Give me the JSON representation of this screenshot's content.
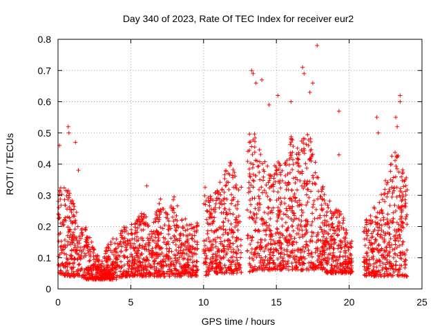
{
  "chart_data": {
    "type": "scatter",
    "title": "Day 340 of 2023, Rate Of TEC Index for receiver eur2",
    "xlabel": "GPS time / hours",
    "ylabel": "ROTI / TECUs",
    "xlim": [
      0,
      25
    ],
    "ylim": [
      0,
      0.8
    ],
    "xticks": [
      0,
      5,
      10,
      15,
      20,
      25
    ],
    "xtick_labels": [
      "0",
      "5",
      "10",
      "15",
      "20",
      "25"
    ],
    "yticks": [
      0,
      0.1,
      0.2,
      0.3,
      0.4,
      0.5,
      0.6,
      0.7,
      0.8
    ],
    "ytick_labels": [
      "0",
      "0.1",
      "0.2",
      "0.3",
      "0.4",
      "0.5",
      "0.6",
      "0.7",
      "0.8"
    ],
    "grid": true,
    "marker": "+",
    "marker_color": "#ff0000",
    "data_gaps_hours": [
      [
        9.6,
        10.0
      ],
      [
        12.6,
        13.0
      ],
      [
        20.2,
        21.0
      ]
    ],
    "envelope_hours": [
      0,
      0.5,
      1,
      1.5,
      2,
      2.5,
      3,
      3.5,
      4,
      4.5,
      5,
      5.5,
      6,
      6.5,
      7,
      7.5,
      8,
      8.5,
      9,
      9.5,
      10,
      10.5,
      11,
      11.5,
      12,
      12.5,
      13,
      13.5,
      14,
      14.5,
      15,
      15.5,
      16,
      16.5,
      17,
      17.5,
      18,
      18.5,
      19,
      19.5,
      20,
      21,
      21.5,
      22,
      22.5,
      23,
      23.5,
      24
    ],
    "upper_envelope": [
      0.35,
      0.33,
      0.3,
      0.2,
      0.2,
      0.13,
      0.1,
      0.15,
      0.17,
      0.2,
      0.22,
      0.24,
      0.25,
      0.2,
      0.3,
      0.24,
      0.3,
      0.24,
      0.22,
      0.2,
      0.35,
      0.3,
      0.35,
      0.38,
      0.42,
      0.3,
      0.5,
      0.5,
      0.45,
      0.38,
      0.42,
      0.4,
      0.5,
      0.45,
      0.55,
      0.45,
      0.35,
      0.3,
      0.26,
      0.25,
      0.15,
      0.2,
      0.26,
      0.3,
      0.35,
      0.45,
      0.42,
      0.35
    ],
    "baseline": [
      0.05,
      0.04,
      0.04,
      0.04,
      0.03,
      0.03,
      0.03,
      0.03,
      0.03,
      0.04,
      0.04,
      0.04,
      0.04,
      0.04,
      0.04,
      0.04,
      0.04,
      0.04,
      0.04,
      0.04,
      0.04,
      0.05,
      0.05,
      0.05,
      0.05,
      0.05,
      0.05,
      0.06,
      0.06,
      0.06,
      0.06,
      0.06,
      0.06,
      0.06,
      0.06,
      0.06,
      0.06,
      0.05,
      0.05,
      0.05,
      0.05,
      0.04,
      0.04,
      0.04,
      0.04,
      0.04,
      0.04,
      0.04
    ],
    "outliers": [
      {
        "x": 0.1,
        "y": 0.46
      },
      {
        "x": 0.7,
        "y": 0.52
      },
      {
        "x": 0.75,
        "y": 0.5
      },
      {
        "x": 1.2,
        "y": 0.47
      },
      {
        "x": 1.4,
        "y": 0.38
      },
      {
        "x": 6.1,
        "y": 0.33
      },
      {
        "x": 13.3,
        "y": 0.7
      },
      {
        "x": 13.4,
        "y": 0.69
      },
      {
        "x": 13.6,
        "y": 0.66
      },
      {
        "x": 14.0,
        "y": 0.67
      },
      {
        "x": 14.5,
        "y": 0.59
      },
      {
        "x": 15.1,
        "y": 0.62
      },
      {
        "x": 16.0,
        "y": 0.6
      },
      {
        "x": 16.8,
        "y": 0.71
      },
      {
        "x": 16.9,
        "y": 0.69
      },
      {
        "x": 17.3,
        "y": 0.63
      },
      {
        "x": 17.5,
        "y": 0.66
      },
      {
        "x": 17.8,
        "y": 0.78
      },
      {
        "x": 19.3,
        "y": 0.57
      },
      {
        "x": 19.3,
        "y": 0.43
      },
      {
        "x": 21.9,
        "y": 0.55
      },
      {
        "x": 22.0,
        "y": 0.5
      },
      {
        "x": 23.2,
        "y": 0.55
      },
      {
        "x": 23.5,
        "y": 0.62
      },
      {
        "x": 23.5,
        "y": 0.6
      },
      {
        "x": 23.3,
        "y": 0.52
      }
    ]
  }
}
